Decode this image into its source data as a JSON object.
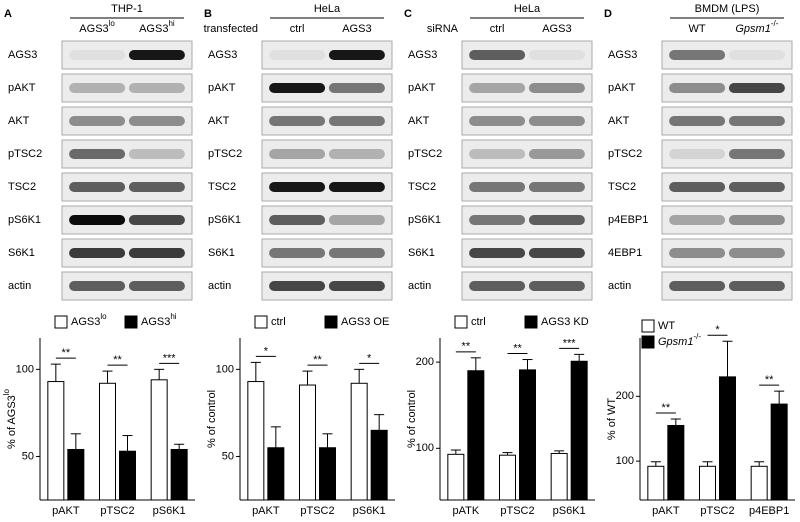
{
  "panels": [
    {
      "letter": "A",
      "blot": {
        "cell": "THP-1",
        "lanes": [
          {
            "text": "AGS3",
            "sup": "lo"
          },
          {
            "text": "AGS3",
            "sup": "hi"
          }
        ],
        "rows": [
          "AGS3",
          "pAKT",
          "AKT",
          "pTSC2",
          "TSC2",
          "pS6K1",
          "S6K1",
          "actin"
        ]
      }
    },
    {
      "letter": "B",
      "blot": {
        "cell": "HeLa",
        "treatment": "transfected",
        "lanes": [
          "ctrl",
          "AGS3"
        ],
        "rows": [
          "AGS3",
          "pAKT",
          "AKT",
          "pTSC2",
          "TSC2",
          "pS6K1",
          "S6K1",
          "actin"
        ]
      }
    },
    {
      "letter": "C",
      "blot": {
        "cell": "HeLa",
        "treatment": "siRNA",
        "lanes": [
          "ctrl",
          "AGS3"
        ],
        "rows": [
          "AGS3",
          "pAKT",
          "AKT",
          "pTSC2",
          "TSC2",
          "pS6K1",
          "S6K1",
          "actin"
        ]
      }
    },
    {
      "letter": "D",
      "blot": {
        "cell": "BMDM (LPS)",
        "lanes": [
          "WT",
          {
            "text": "Gpsm1",
            "sup": "-/-",
            "italic": true
          }
        ],
        "rows": [
          "AGS3",
          "pAKT",
          "AKT",
          "pTSC2",
          "TSC2",
          "p4EBP1",
          "4EBP1",
          "actin"
        ]
      }
    }
  ],
  "chart_data": [
    {
      "type": "bar",
      "y_label": {
        "text": "% of AGS3",
        "sup": "lo"
      },
      "categories": [
        "pAKT",
        "pTSC2",
        "pS6K1"
      ],
      "series": [
        {
          "name": {
            "text": "AGS3",
            "sup": "lo"
          },
          "color": "#ffffff",
          "values": [
            93,
            92,
            94
          ],
          "errors": [
            10,
            7,
            6
          ]
        },
        {
          "name": {
            "text": "AGS3",
            "sup": "hi"
          },
          "color": "#000000",
          "values": [
            54,
            53,
            54
          ],
          "errors": [
            9,
            9,
            3
          ]
        }
      ],
      "significance": [
        "**",
        "**",
        "***"
      ],
      "ylim": [
        25,
        118
      ],
      "yticks": [
        50,
        100
      ]
    },
    {
      "type": "bar",
      "y_label": "% of control",
      "categories": [
        "pAKT",
        "pTSC2",
        "pS6K1"
      ],
      "series": [
        {
          "name": "ctrl",
          "color": "#ffffff",
          "values": [
            93,
            91,
            92
          ],
          "errors": [
            11,
            8,
            8
          ]
        },
        {
          "name": "AGS3 OE",
          "color": "#000000",
          "values": [
            55,
            55,
            65
          ],
          "errors": [
            12,
            8,
            9
          ]
        }
      ],
      "significance": [
        "*",
        "**",
        "*"
      ],
      "ylim": [
        25,
        118
      ],
      "yticks": [
        50,
        100
      ]
    },
    {
      "type": "bar",
      "y_label": "% of control",
      "categories": [
        "pATK",
        "pTSC2",
        "pS6K1"
      ],
      "series": [
        {
          "name": "ctrl",
          "color": "#ffffff",
          "values": [
            93,
            92,
            94
          ],
          "errors": [
            5,
            3,
            3
          ]
        },
        {
          "name": "AGS3 KD",
          "color": "#000000",
          "values": [
            190,
            191,
            201
          ],
          "errors": [
            15,
            12,
            8
          ]
        }
      ],
      "significance": [
        "**",
        "**",
        "***"
      ],
      "ylim": [
        40,
        228
      ],
      "yticks": [
        100,
        200
      ]
    },
    {
      "type": "bar",
      "y_label": "% of WT",
      "categories": [
        "pAKT",
        "pTSC2",
        "p4EBP1"
      ],
      "series": [
        {
          "name": "WT",
          "color": "#ffffff",
          "values": [
            92,
            92,
            92
          ],
          "errors": [
            7,
            7,
            7
          ]
        },
        {
          "name": {
            "text": "Gpsm1",
            "sup": "-/-",
            "italic": true
          },
          "color": "#000000",
          "values": [
            155,
            230,
            188
          ],
          "errors": [
            10,
            55,
            20
          ]
        }
      ],
      "significance": [
        "**",
        "*",
        "**"
      ],
      "legend_layout": "vertical",
      "ylim": [
        40,
        290
      ],
      "yticks": [
        100,
        200
      ]
    }
  ]
}
